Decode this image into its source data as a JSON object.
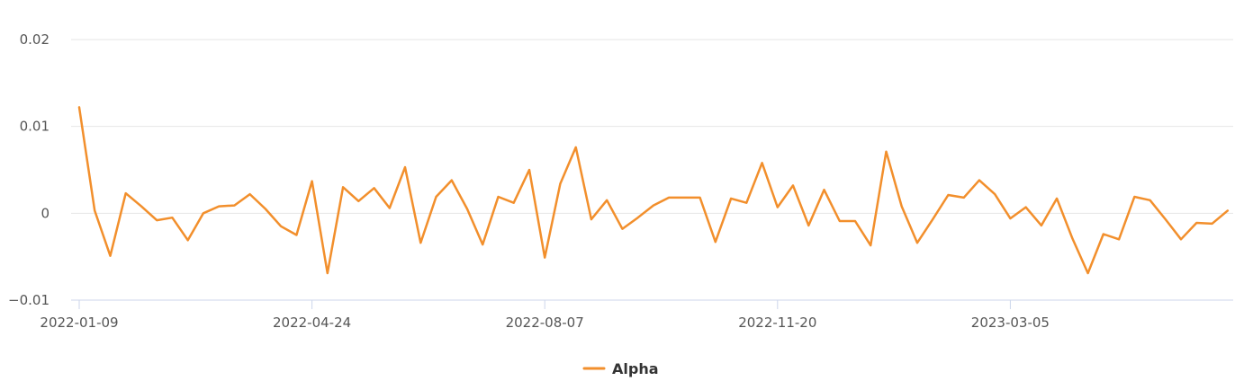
{
  "chart_data": {
    "type": "line",
    "x": [
      "2022-01-09",
      "2022-01-16",
      "2022-01-23",
      "2022-01-30",
      "2022-02-06",
      "2022-02-13",
      "2022-02-20",
      "2022-02-27",
      "2022-03-06",
      "2022-03-13",
      "2022-03-20",
      "2022-03-27",
      "2022-04-03",
      "2022-04-10",
      "2022-04-17",
      "2022-04-24",
      "2022-05-01",
      "2022-05-08",
      "2022-05-15",
      "2022-05-22",
      "2022-05-29",
      "2022-06-05",
      "2022-06-12",
      "2022-06-19",
      "2022-06-26",
      "2022-07-03",
      "2022-07-10",
      "2022-07-17",
      "2022-07-24",
      "2022-07-31",
      "2022-08-07",
      "2022-08-14",
      "2022-08-21",
      "2022-08-28",
      "2022-09-04",
      "2022-09-11",
      "2022-09-18",
      "2022-09-25",
      "2022-10-02",
      "2022-10-09",
      "2022-10-16",
      "2022-10-23",
      "2022-10-30",
      "2022-11-06",
      "2022-11-13",
      "2022-11-20",
      "2022-11-27",
      "2022-12-04",
      "2022-12-11",
      "2022-12-18",
      "2022-12-25",
      "2023-01-01",
      "2023-01-08",
      "2023-01-15",
      "2023-01-22",
      "2023-01-29",
      "2023-02-05",
      "2023-02-12",
      "2023-02-19",
      "2023-02-26",
      "2023-03-05",
      "2023-03-12",
      "2023-03-19",
      "2023-03-26",
      "2023-04-02",
      "2023-04-09",
      "2023-04-16",
      "2023-04-23",
      "2023-04-30",
      "2023-05-07",
      "2023-05-14",
      "2023-05-21",
      "2023-05-28",
      "2023-06-04",
      "2023-06-11"
    ],
    "series": [
      {
        "name": "Alpha",
        "color": "#f28f2c",
        "values": [
          0.0122,
          0.0003,
          -0.0049,
          0.0023,
          0.0008,
          -0.0008,
          -0.0005,
          -0.0031,
          0.0,
          0.0008,
          0.0009,
          0.0022,
          0.0005,
          -0.0015,
          -0.0025,
          0.0037,
          -0.0069,
          0.003,
          0.0014,
          0.0029,
          0.0006,
          0.0053,
          -0.0034,
          0.0019,
          0.0038,
          0.0005,
          -0.0036,
          0.0019,
          0.0012,
          0.005,
          -0.0051,
          0.0034,
          0.0076,
          -0.0007,
          0.0015,
          -0.0018,
          -0.0005,
          0.0009,
          0.0018,
          0.0018,
          0.0018,
          -0.0033,
          0.0017,
          0.0012,
          0.0058,
          0.0007,
          0.0032,
          -0.0014,
          0.0027,
          -0.0009,
          -0.0009,
          -0.0037,
          0.0071,
          0.0008,
          -0.0034,
          -0.0007,
          0.0021,
          0.0018,
          0.0038,
          0.0022,
          -0.0006,
          0.0007,
          -0.0014,
          0.0017,
          -0.0029,
          -0.0069,
          -0.0024,
          -0.003,
          0.0019,
          0.0015,
          -0.0007,
          -0.003,
          -0.0011,
          -0.0012,
          0.0003
        ]
      }
    ],
    "x_ticks": [
      "2022-01-09",
      "2022-04-24",
      "2022-08-07",
      "2022-11-20",
      "2023-03-05"
    ],
    "y_ticks": [
      {
        "value": 0.02,
        "label": "0.02"
      },
      {
        "value": 0.01,
        "label": "0.01"
      },
      {
        "value": 0,
        "label": "0"
      },
      {
        "value": -0.01,
        "label": "−0.01"
      }
    ],
    "ylim": [
      -0.01,
      0.02
    ],
    "grid": true,
    "legend_position": "bottom-center",
    "colors": {
      "grid": "#e6e6e6",
      "axis": "#ccd6eb",
      "tick_text": "#555555",
      "legend_text": "#333333"
    }
  }
}
